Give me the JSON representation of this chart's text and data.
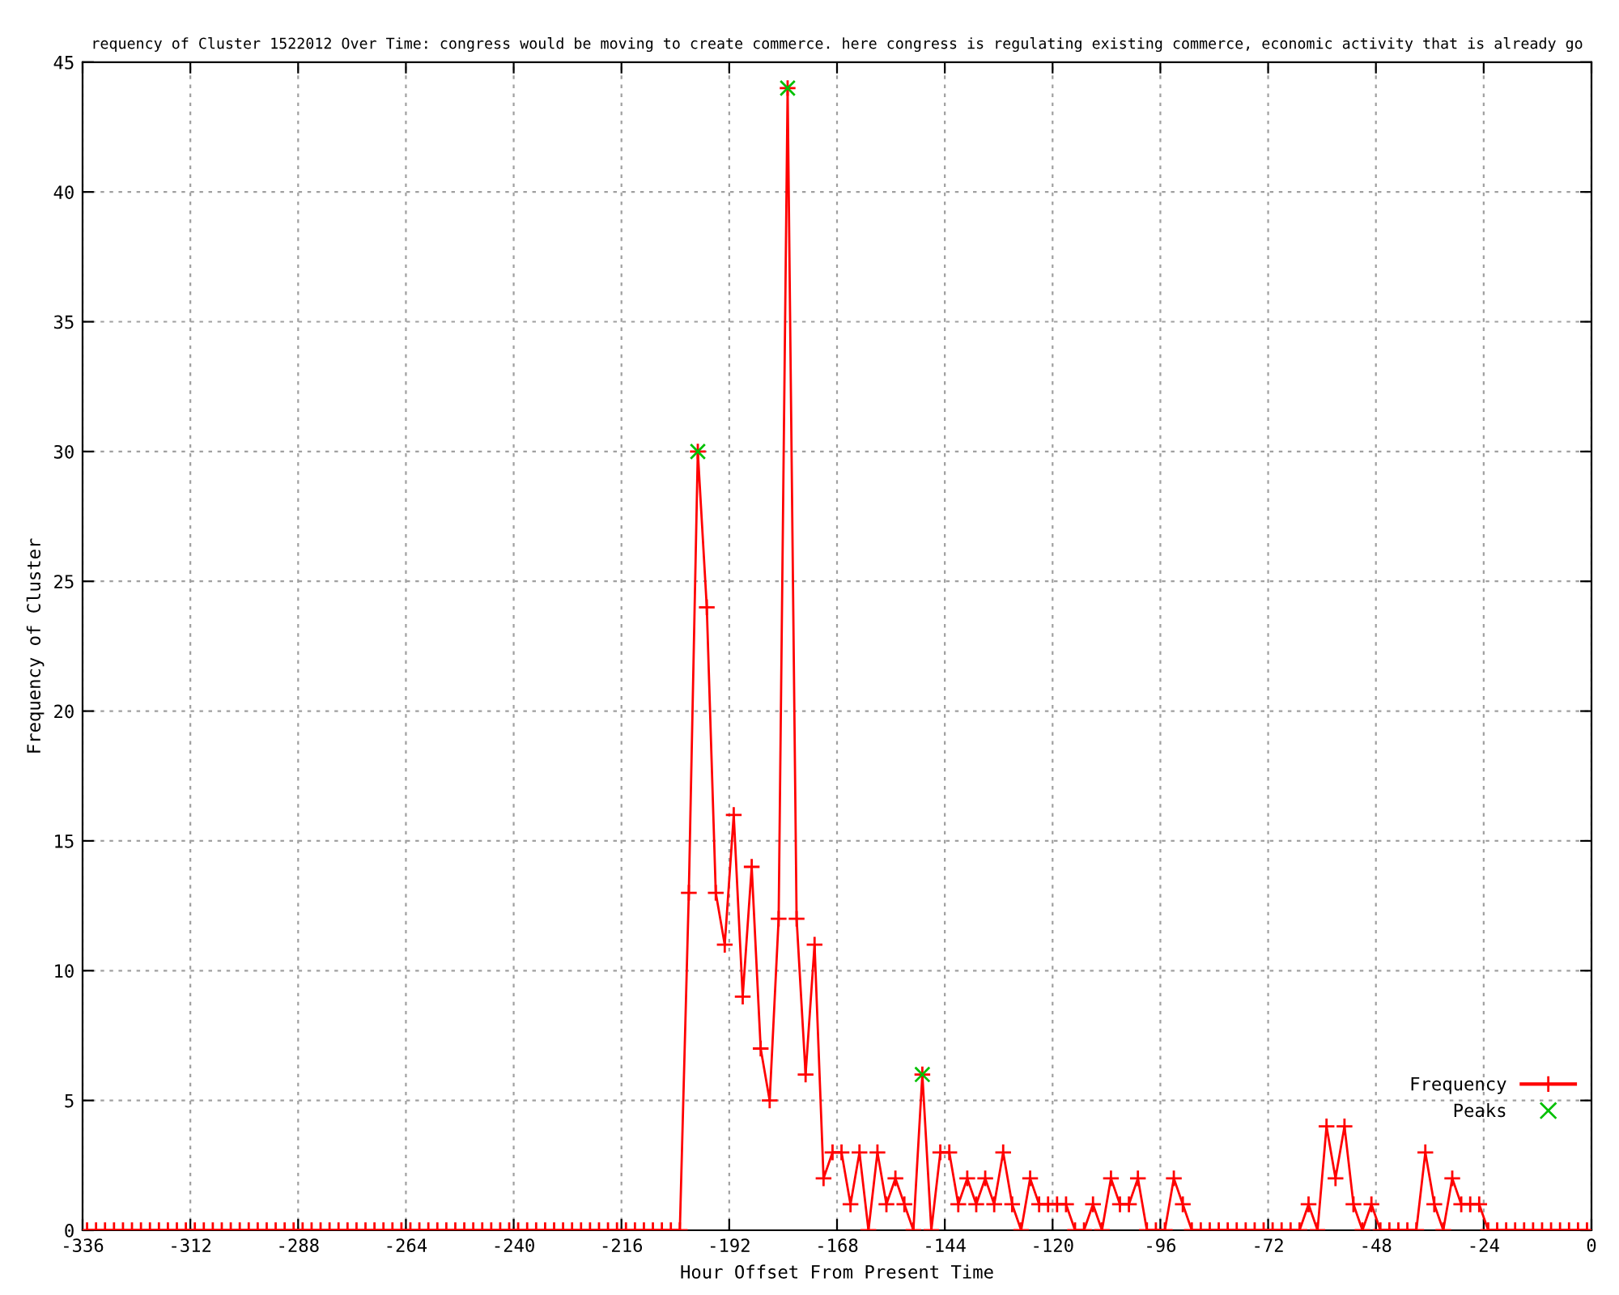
{
  "chart_data": {
    "type": "line",
    "title": "requency of Cluster 1522012 Over Time: congress would be moving to create commerce. here congress is regulating existing commerce, economic activity that is already go",
    "xlabel": "Hour Offset From Present Time",
    "ylabel": "Frequency of Cluster",
    "xlim": [
      -336,
      0
    ],
    "ylim": [
      0,
      45
    ],
    "xticks": [
      -336,
      -312,
      -288,
      -264,
      -240,
      -216,
      -192,
      -168,
      -144,
      -120,
      -96,
      -72,
      -48,
      -24,
      0
    ],
    "yticks": [
      0,
      5,
      10,
      15,
      20,
      25,
      30,
      35,
      40,
      45
    ],
    "grid": true,
    "legend": "bottom right",
    "series": [
      {
        "name": "Frequency",
        "color": "#ff0000",
        "marker": "cross",
        "line_style": "solid",
        "x": [
          -335,
          -333,
          -331,
          -329,
          -327,
          -325,
          -323,
          -321,
          -319,
          -317,
          -315,
          -313,
          -311,
          -309,
          -307,
          -305,
          -303,
          -301,
          -299,
          -297,
          -295,
          -293,
          -291,
          -289,
          -287,
          -285,
          -283,
          -281,
          -279,
          -277,
          -275,
          -273,
          -271,
          -269,
          -267,
          -265,
          -263,
          -261,
          -259,
          -257,
          -255,
          -253,
          -251,
          -249,
          -247,
          -245,
          -243,
          -241,
          -239,
          -237,
          -235,
          -233,
          -231,
          -229,
          -227,
          -225,
          -223,
          -221,
          -219,
          -217,
          -215,
          -213,
          -211,
          -209,
          -207,
          -205,
          -203,
          -201,
          -199,
          -197,
          -195,
          -193,
          -191,
          -189,
          -187,
          -185,
          -183,
          -181,
          -179,
          -177,
          -175,
          -173,
          -171,
          -169,
          -167,
          -165,
          -163,
          -161,
          -159,
          -157,
          -155,
          -153,
          -151,
          -149,
          -147,
          -145,
          -143,
          -141,
          -139,
          -137,
          -135,
          -133,
          -131,
          -129,
          -127,
          -125,
          -123,
          -121,
          -119,
          -117,
          -115,
          -113,
          -111,
          -109,
          -107,
          -105,
          -103,
          -101,
          -99,
          -97,
          -95,
          -93,
          -91,
          -89,
          -87,
          -85,
          -83,
          -81,
          -79,
          -77,
          -75,
          -73,
          -71,
          -69,
          -67,
          -65,
          -63,
          -61,
          -59,
          -57,
          -55,
          -53,
          -51,
          -49,
          -47,
          -45,
          -43,
          -41,
          -39,
          -37,
          -35,
          -33,
          -31,
          -29,
          -27,
          -25,
          -23,
          -21,
          -19,
          -17,
          -15,
          -13,
          -11,
          -9,
          -7,
          -5,
          -3,
          -1
        ],
        "values": [
          0,
          0,
          0,
          0,
          0,
          0,
          0,
          0,
          0,
          0,
          0,
          0,
          0,
          0,
          0,
          0,
          0,
          0,
          0,
          0,
          0,
          0,
          0,
          0,
          0,
          0,
          0,
          0,
          0,
          0,
          0,
          0,
          0,
          0,
          0,
          0,
          0,
          0,
          0,
          0,
          0,
          0,
          0,
          0,
          0,
          0,
          0,
          0,
          0,
          0,
          0,
          0,
          0,
          0,
          0,
          0,
          0,
          0,
          0,
          0,
          0,
          0,
          0,
          0,
          0,
          0,
          0,
          13,
          30,
          24,
          13,
          11,
          16,
          9,
          14,
          7,
          5,
          12,
          44,
          12,
          6,
          11,
          2,
          3,
          3,
          1,
          3,
          0,
          3,
          1,
          2,
          1,
          0,
          6,
          0,
          3,
          3,
          1,
          2,
          1,
          2,
          1,
          3,
          1,
          0,
          2,
          1,
          1,
          1,
          1,
          0,
          0,
          1,
          0,
          2,
          1,
          1,
          2,
          0,
          0,
          0,
          2,
          1,
          0,
          0,
          0,
          0,
          0,
          0,
          0,
          0,
          0,
          0,
          0,
          0,
          0,
          1,
          0,
          4,
          2,
          4,
          1,
          0,
          1,
          0,
          0,
          0,
          0,
          0,
          3,
          1,
          0,
          2,
          1,
          1,
          1,
          0,
          0,
          0,
          0,
          0,
          0,
          0,
          0,
          0,
          0,
          0,
          0
        ]
      },
      {
        "name": "Peaks",
        "type": "scatter",
        "color": "#00c000",
        "marker": "cross",
        "x": [
          -199,
          -179,
          -149
        ],
        "values": [
          30,
          44,
          6
        ]
      }
    ]
  }
}
